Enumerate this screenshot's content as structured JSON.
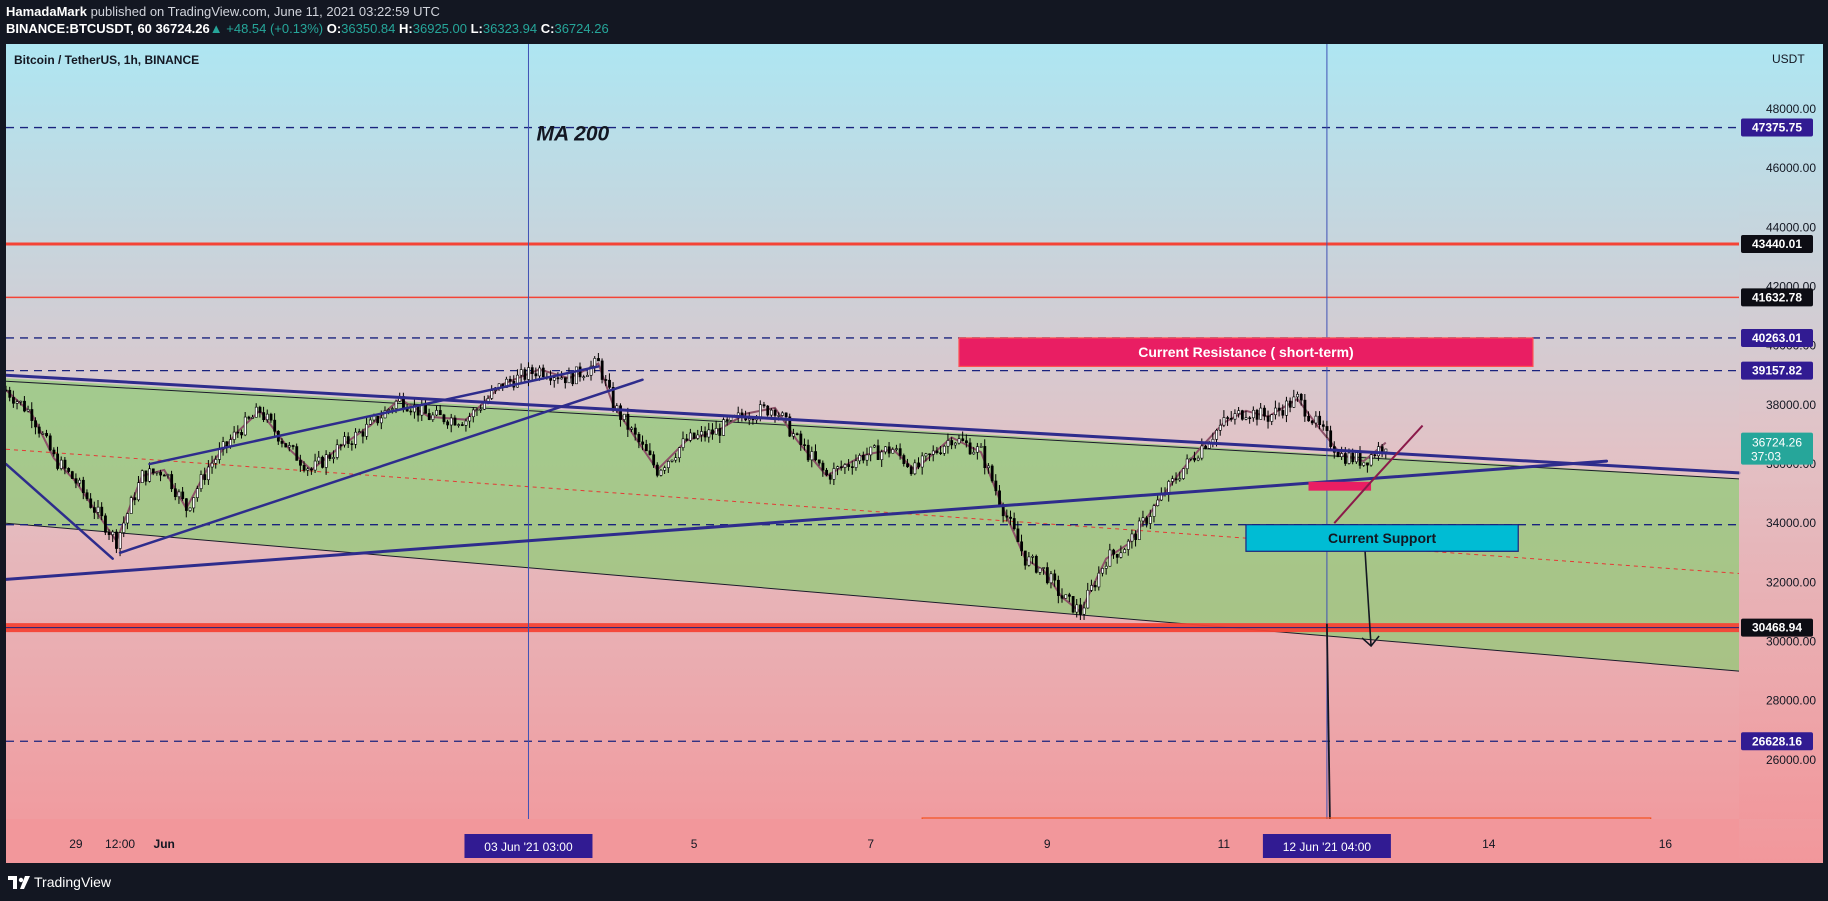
{
  "header": {
    "author": "HamadaMark",
    "published_text": "published on TradingView.com, June 11, 2021 03:22:59 UTC",
    "symbol": "BINANCE:BTCUSDT, 60",
    "last": "36724.26",
    "change": "▲ +48.54 (+0.13%)",
    "o_label": "O:",
    "o_value": "36350.84",
    "h_label": "H:",
    "h_value": "36925.00",
    "l_label": "L:",
    "l_value": "36323.94",
    "c_label": "C:",
    "c_value": "36724.26"
  },
  "footer": {
    "brand": "TradingView"
  },
  "colors": {
    "bg_top": "#aee6f2",
    "bg_bottom": "#f2979b",
    "wedge_fill": "#8ccc73",
    "resistance_red": "#f44336",
    "label_purple": "#311b92",
    "dash_navy": "#1a237e",
    "resistance_box": "#e91e63",
    "support_box": "#00bcd4",
    "zigzag": "#8d5168",
    "trend_navy": "#2e2c8c",
    "price_tag": "#26a69a"
  },
  "chart_data": {
    "type": "line",
    "title": "Bitcoin / TetherUS, 1h, BINANCE",
    "currency": "USDT",
    "ylim": [
      24000,
      50200
    ],
    "y_ticks": [
      "48000.00",
      "46000.00",
      "44000.00",
      "42000.00",
      "40000.00",
      "38000.00",
      "36000.00",
      "34000.00",
      "32000.00",
      "30000.00",
      "28000.00",
      "26000.00"
    ],
    "x_range": [
      "2021-05-28T05:00",
      "2021-06-16T20:00"
    ],
    "x_ticks": [
      {
        "t": "2021-05-29T00:00",
        "label": "29"
      },
      {
        "t": "2021-05-29T12:00",
        "label": "12:00"
      },
      {
        "t": "2021-05-30T00:00",
        "label": "Jun"
      },
      {
        "t": "2021-06-05T00:00",
        "label": "5"
      },
      {
        "t": "2021-06-07T00:00",
        "label": "7"
      },
      {
        "t": "2021-06-09T00:00",
        "label": "9"
      },
      {
        "t": "2021-06-11T00:00",
        "label": "11"
      },
      {
        "t": "2021-06-14T00:00",
        "label": "14"
      },
      {
        "t": "2021-06-16T00:00",
        "label": "16"
      }
    ],
    "x_labels_boxed": [
      {
        "t": "2021-06-03T03:00",
        "label": "03 Jun '21   03:00"
      },
      {
        "t": "2021-06-12T04:00",
        "label": "12 Jun '21   04:00"
      }
    ],
    "price_series": [
      {
        "t": "2021-05-28T05:00",
        "p": 38500
      },
      {
        "t": "2021-05-28T12:00",
        "p": 37700
      },
      {
        "t": "2021-05-28T18:00",
        "p": 36200
      },
      {
        "t": "2021-05-29T00:00",
        "p": 35400
      },
      {
        "t": "2021-05-29T06:00",
        "p": 34300
      },
      {
        "t": "2021-05-29T11:00",
        "p": 33400
      },
      {
        "t": "2021-05-29T18:00",
        "p": 35600
      },
      {
        "t": "2021-05-30T00:00",
        "p": 35800
      },
      {
        "t": "2021-05-30T06:00",
        "p": 34500
      },
      {
        "t": "2021-05-30T12:00",
        "p": 35900
      },
      {
        "t": "2021-05-30T20:00",
        "p": 37100
      },
      {
        "t": "2021-05-31T02:00",
        "p": 37800
      },
      {
        "t": "2021-05-31T10:00",
        "p": 36500
      },
      {
        "t": "2021-05-31T16:00",
        "p": 35800
      },
      {
        "t": "2021-06-01T00:00",
        "p": 36600
      },
      {
        "t": "2021-06-01T08:00",
        "p": 37300
      },
      {
        "t": "2021-06-01T16:00",
        "p": 38200
      },
      {
        "t": "2021-06-02T00:00",
        "p": 37600
      },
      {
        "t": "2021-06-02T10:00",
        "p": 37500
      },
      {
        "t": "2021-06-02T20:00",
        "p": 38700
      },
      {
        "t": "2021-06-03T06:00",
        "p": 39200
      },
      {
        "t": "2021-06-03T14:00",
        "p": 38900
      },
      {
        "t": "2021-06-03T22:00",
        "p": 39400
      },
      {
        "t": "2021-06-04T02:00",
        "p": 38000
      },
      {
        "t": "2021-06-04T08:00",
        "p": 36900
      },
      {
        "t": "2021-06-04T14:00",
        "p": 35800
      },
      {
        "t": "2021-06-04T22:00",
        "p": 36800
      },
      {
        "t": "2021-06-05T06:00",
        "p": 37100
      },
      {
        "t": "2021-06-05T14:00",
        "p": 37700
      },
      {
        "t": "2021-06-05T22:00",
        "p": 37900
      },
      {
        "t": "2021-06-06T04:00",
        "p": 36800
      },
      {
        "t": "2021-06-06T12:00",
        "p": 35600
      },
      {
        "t": "2021-06-06T22:00",
        "p": 36300
      },
      {
        "t": "2021-06-07T06:00",
        "p": 36500
      },
      {
        "t": "2021-06-07T12:00",
        "p": 35800
      },
      {
        "t": "2021-06-07T22:00",
        "p": 36900
      },
      {
        "t": "2021-06-08T06:00",
        "p": 36400
      },
      {
        "t": "2021-06-08T12:00",
        "p": 34500
      },
      {
        "t": "2021-06-08T18:00",
        "p": 32800
      },
      {
        "t": "2021-06-08T23:00",
        "p": 32400
      },
      {
        "t": "2021-06-09T04:00",
        "p": 31500
      },
      {
        "t": "2021-06-09T09:00",
        "p": 31000
      },
      {
        "t": "2021-06-09T16:00",
        "p": 32800
      },
      {
        "t": "2021-06-09T22:00",
        "p": 33300
      },
      {
        "t": "2021-06-10T06:00",
        "p": 34700
      },
      {
        "t": "2021-06-10T12:00",
        "p": 35700
      },
      {
        "t": "2021-06-10T18:00",
        "p": 36600
      },
      {
        "t": "2021-06-11T00:00",
        "p": 37400
      },
      {
        "t": "2021-06-11T06:00",
        "p": 37800
      },
      {
        "t": "2021-06-11T12:00",
        "p": 37600
      },
      {
        "t": "2021-06-11T20:00",
        "p": 38200
      },
      {
        "t": "2021-06-12T02:00",
        "p": 37200
      },
      {
        "t": "2021-06-12T08:00",
        "p": 36300
      },
      {
        "t": "2021-06-12T14:00",
        "p": 36100
      },
      {
        "t": "2021-06-12T20:00",
        "p": 36724
      }
    ],
    "horizontal_levels": [
      {
        "price": 47375.75,
        "label": "47375.75",
        "style": "dashed"
      },
      {
        "price": 43440.01,
        "label": "43440.01",
        "style": "solid-red"
      },
      {
        "price": 41632.78,
        "label": "41632.78",
        "style": "solid-red-thin"
      },
      {
        "price": 40263.01,
        "label": "40263.01",
        "style": "dashed"
      },
      {
        "price": 39157.82,
        "label": "39157.82",
        "style": "dashed"
      },
      {
        "price": 33950,
        "label": "",
        "style": "dashed"
      },
      {
        "price": 30468.94,
        "label": "30468.94",
        "style": "thick-red"
      },
      {
        "price": 26628.16,
        "label": "26628.16",
        "style": "dashed"
      }
    ],
    "last_price": {
      "price": 36724.26,
      "label": "36724.26",
      "countdown": "37:03"
    },
    "annotations": [
      {
        "type": "text",
        "text": "MA 200",
        "t": "2021-06-03T03:00",
        "price": 47200
      },
      {
        "type": "box",
        "text": "Current Resistance ( short-term)",
        "t1": "2021-06-08T00:00",
        "t2": "2021-06-14T12:00",
        "p1": 40263,
        "p2": 39300
      },
      {
        "type": "box",
        "text": "Current Support",
        "t1": "2021-06-11T06:00",
        "t2": "2021-06-14T08:00",
        "p1": 33950,
        "p2": 33050
      }
    ],
    "grid": false,
    "legend": "none"
  }
}
